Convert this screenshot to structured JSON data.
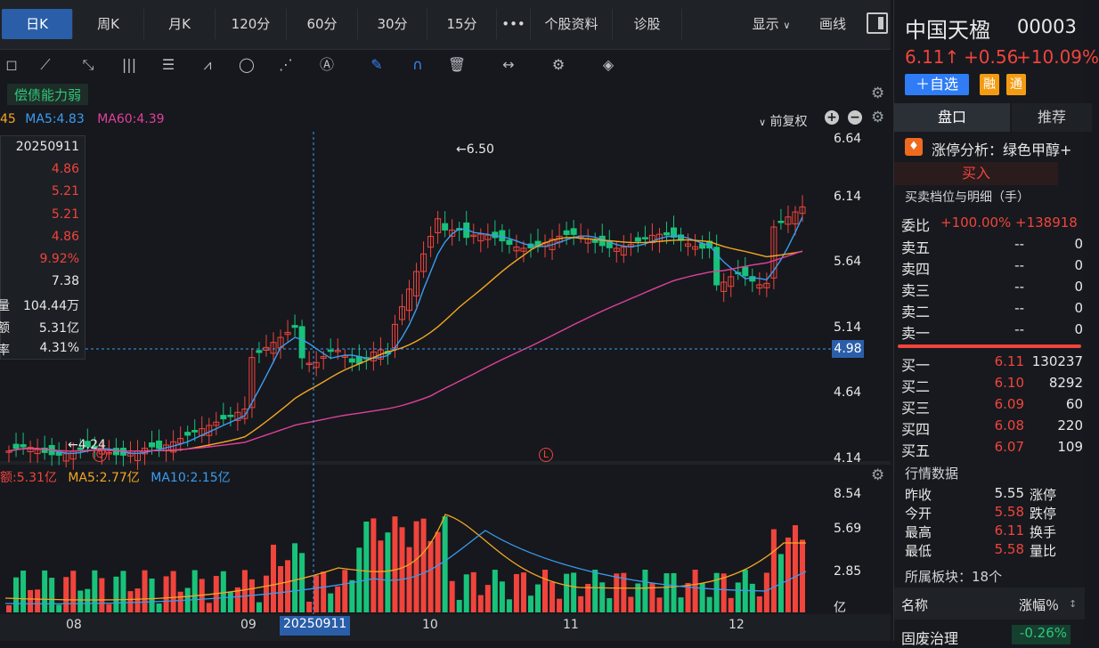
{
  "tabs": [
    "日K",
    "周K",
    "月K",
    "120分",
    "60分",
    "30分",
    "15分",
    "•••",
    "个股资料",
    "诊股"
  ],
  "tab_right": {
    "show": "显示",
    "draw": "画线"
  },
  "icons": [
    "shape-icon",
    "fan-icon",
    "trend-tool-icon",
    "parallel-lines-icon",
    "fib-icon",
    "wave-icon",
    "circle-icon",
    "cross-lines-icon",
    "text-icon",
    "pen-icon",
    "magnet-icon",
    "trash-icon",
    "measure-icon",
    "settings-icon",
    "layers-icon"
  ],
  "tag": "偿债能力弱",
  "ma_line": {
    "partial": "45",
    "ma5": "MA5:4.83",
    "ma60": "MA60:4.39"
  },
  "adjust": "前复权",
  "price_axis": [
    "6.64",
    "6.14",
    "5.64",
    "5.14",
    "4.64",
    "4.14"
  ],
  "crosshair_price": "4.98",
  "high_label": "←6.50",
  "low_label": "←4.24",
  "info": {
    "date": "20250911",
    "rows": [
      "4.86",
      "5.21",
      "5.21",
      "4.86",
      "9.92%",
      "7.38"
    ],
    "vol_label": "量",
    "vol": "104.44万",
    "amt_label": "额",
    "amt": "5.31亿",
    "rate_label": "率",
    "rate": "4.31%"
  },
  "vol_header": {
    "amt": "额:5.31亿",
    "ma5": "MA5:2.77亿",
    "ma10": "MA10:2.15亿"
  },
  "vol_axis": [
    "8.54",
    "5.69",
    "2.85",
    "亿"
  ],
  "x_axis": [
    "08",
    "09",
    "10",
    "11",
    "12"
  ],
  "x_crosshair": "20250911",
  "stock": {
    "name": "中国天楹",
    "code": "00003",
    "price": "6.11↑",
    "change": "+0.56",
    "pct": "+10.09%"
  },
  "buttons": {
    "add": "＋自选",
    "rong": "融",
    "tong": "通"
  },
  "panel_tabs": [
    "盘口",
    "推荐"
  ],
  "limit_analysis": "涨停分析：绿色甲醇+",
  "buy_btn": "买入",
  "book_title": "买卖档位与明细（手）",
  "wei_bi": {
    "label": "委比",
    "pct": "+100.00%",
    "vol": "+138918"
  },
  "sells": [
    {
      "label": "卖五",
      "price": "--",
      "vol": "0"
    },
    {
      "label": "卖四",
      "price": "--",
      "vol": "0"
    },
    {
      "label": "卖三",
      "price": "--",
      "vol": "0"
    },
    {
      "label": "卖二",
      "price": "--",
      "vol": "0"
    },
    {
      "label": "卖一",
      "price": "--",
      "vol": "0"
    }
  ],
  "buys": [
    {
      "label": "买一",
      "price": "6.11",
      "vol": "130237"
    },
    {
      "label": "买二",
      "price": "6.10",
      "vol": "8292"
    },
    {
      "label": "买三",
      "price": "6.09",
      "vol": "60"
    },
    {
      "label": "买四",
      "price": "6.08",
      "vol": "220"
    },
    {
      "label": "买五",
      "price": "6.07",
      "vol": "109"
    }
  ],
  "quote_title": "行情数据",
  "quotes": [
    {
      "label": "昨收",
      "value": "5.55",
      "color": "#e8e8e8",
      "right": "涨停"
    },
    {
      "label": "今开",
      "value": "5.58",
      "color": "#f0443c",
      "right": "跌停"
    },
    {
      "label": "最高",
      "value": "6.11",
      "color": "#f0443c",
      "right": "换手"
    },
    {
      "label": "最低",
      "value": "5.58",
      "color": "#f0443c",
      "right": "量比"
    }
  ],
  "sector": "所属板块：18个",
  "sector_header": {
    "name": "名称",
    "pct": "涨幅％"
  },
  "sector_row": {
    "name": "固废治理",
    "pct": "-0.26%"
  },
  "colors": {
    "up": "#f0443c",
    "down": "#19c27a",
    "ma5": "#3b9cf0",
    "ma10": "#f5a623",
    "ma60": "#e0409a",
    "accent": "#2a5ea8"
  }
}
